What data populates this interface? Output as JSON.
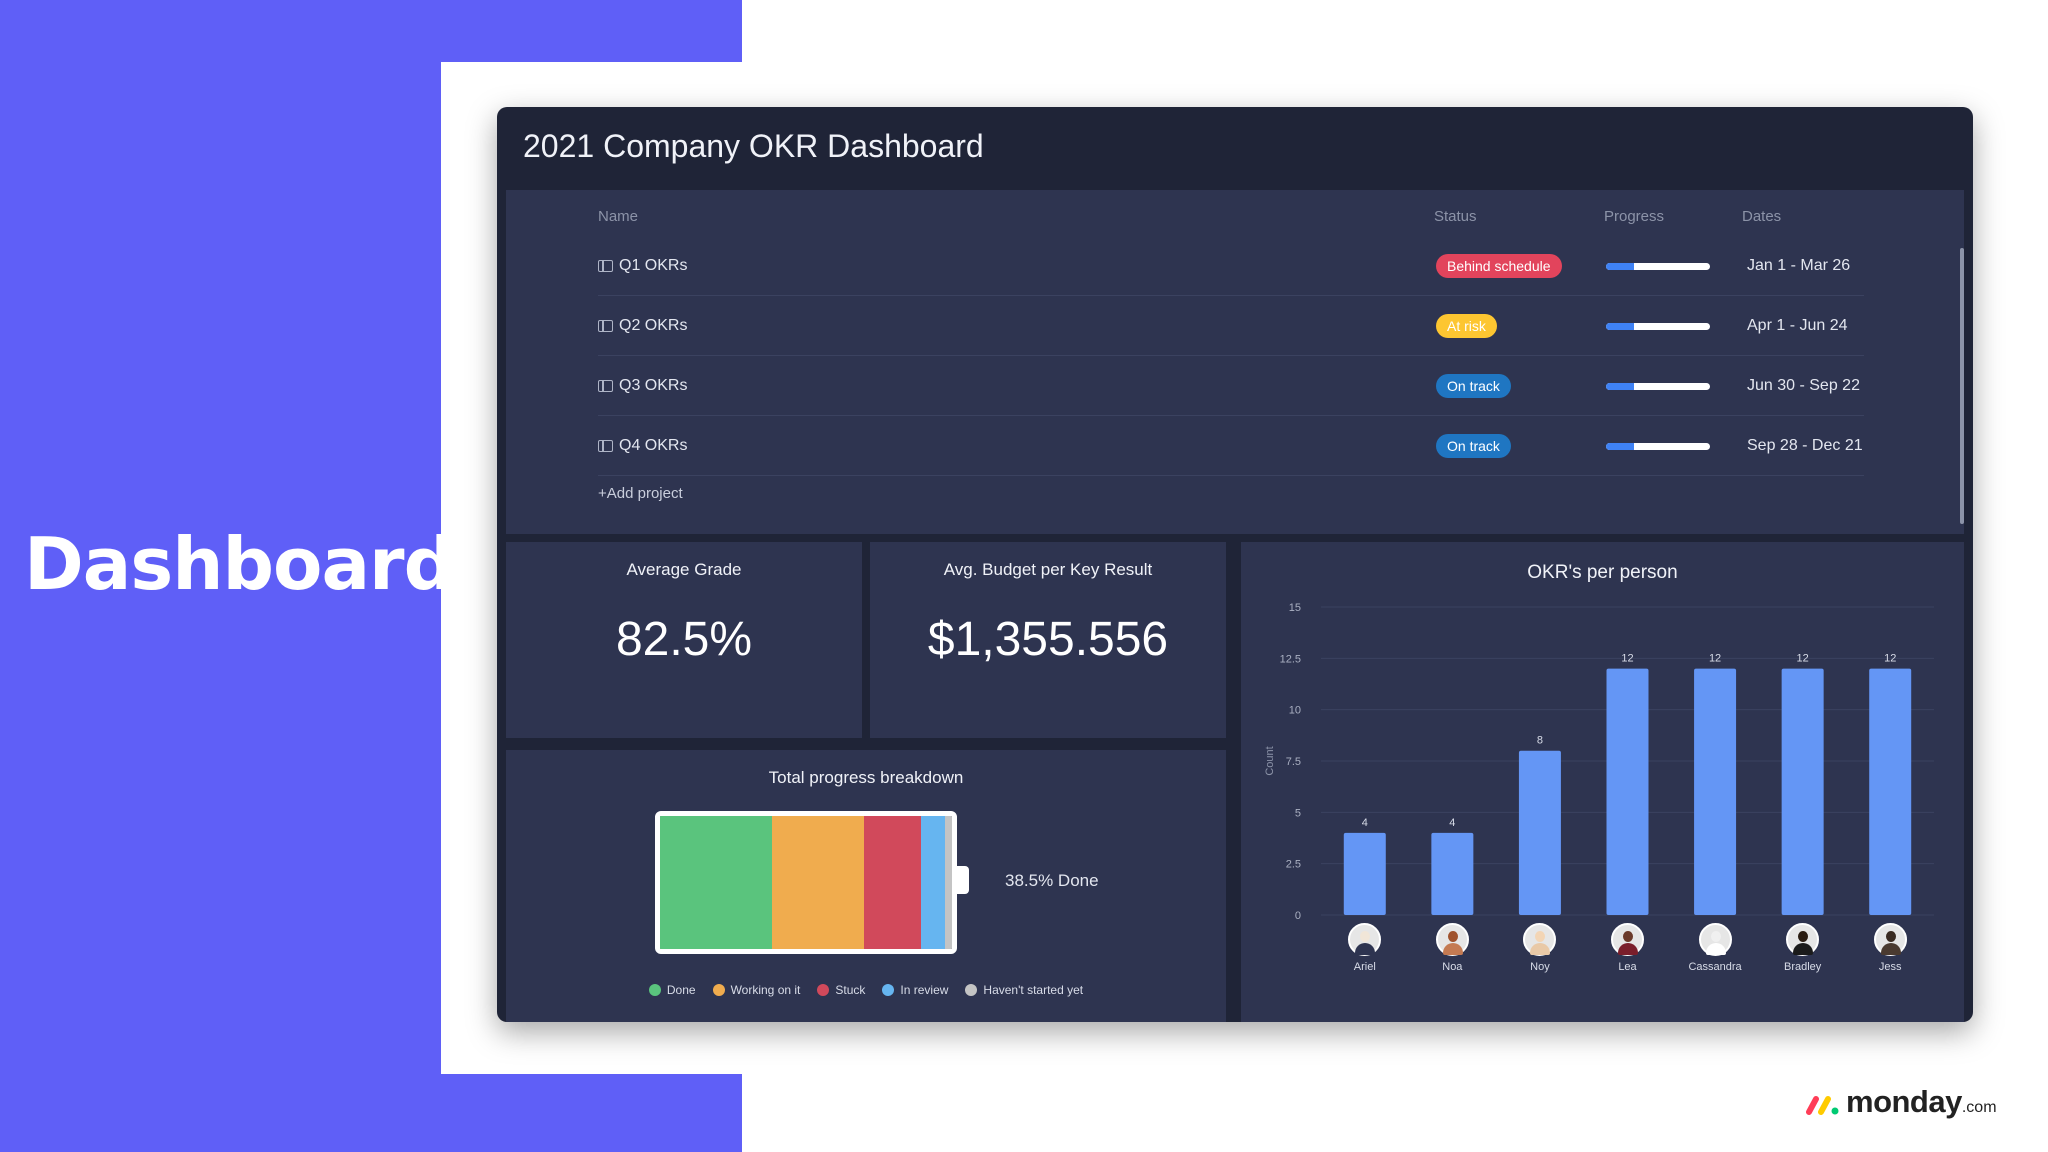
{
  "hero": {
    "title": "Dashboard"
  },
  "window": {
    "title": "2021 Company OKR Dashboard"
  },
  "table": {
    "headers": {
      "name": "Name",
      "status": "Status",
      "progress": "Progress",
      "dates": "Dates"
    },
    "rows": [
      {
        "name": "Q1 OKRs",
        "status": "Behind schedule",
        "status_color": "#e2445c",
        "progress": 0.27,
        "dates": "Jan 1 - Mar 26"
      },
      {
        "name": "Q2 OKRs",
        "status": "At risk",
        "status_color": "#fdc631",
        "progress": 0.27,
        "dates": "Apr 1 - Jun 24"
      },
      {
        "name": "Q3 OKRs",
        "status": "On track",
        "status_color": "#1f76c2",
        "progress": 0.27,
        "dates": "Jun 30 - Sep 22"
      },
      {
        "name": "Q4 OKRs",
        "status": "On track",
        "status_color": "#1f76c2",
        "progress": 0.27,
        "dates": "Sep 28 - Dec 21"
      }
    ],
    "add_project": "+Add project",
    "row_icon": "board-icon"
  },
  "kpis": [
    {
      "title": "Average Grade",
      "value": "82.5%"
    },
    {
      "title": "Avg. Budget per Key Result",
      "value": "$1,355.556"
    }
  ],
  "progress_breakdown": {
    "title": "Total progress breakdown",
    "label": "38.5% Done",
    "segments": [
      {
        "name": "Done",
        "value": 38.5,
        "color": "#5ac47d"
      },
      {
        "name": "Working on it",
        "value": 31.5,
        "color": "#f0ac4e"
      },
      {
        "name": "Stuck",
        "value": 19.5,
        "color": "#d1495b"
      },
      {
        "name": "In review",
        "value": 8.0,
        "color": "#66b5f0"
      },
      {
        "name": "Haven't started yet",
        "value": 2.5,
        "color": "#c4c4c4"
      }
    ]
  },
  "chart_data": {
    "type": "bar",
    "title": "OKR's per person",
    "ylabel": "Count",
    "xlabel": "",
    "categories": [
      "Ariel",
      "Noa",
      "Noy",
      "Lea",
      "Cassandra",
      "Bradley",
      "Jess"
    ],
    "values": [
      4,
      4,
      8,
      12,
      12,
      12,
      12
    ],
    "ylim": [
      0,
      15
    ],
    "yticks": [
      "0",
      "2.5",
      "5",
      "7.5",
      "10",
      "12.5",
      "15"
    ],
    "bar_color": "#6496f5",
    "grid": true,
    "legend": "none"
  },
  "brand": {
    "name": "monday",
    "tld": ".com"
  }
}
